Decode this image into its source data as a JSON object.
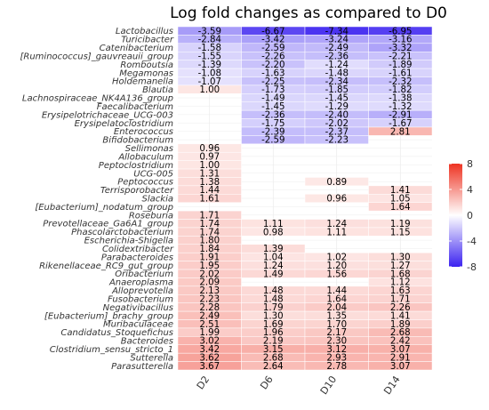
{
  "chart_data": {
    "type": "heatmap",
    "title": "Log fold changes as compared to D0",
    "columns": [
      "D2",
      "D6",
      "D10",
      "D14"
    ],
    "color_scale": {
      "min": -8,
      "mid": 0,
      "max": 8,
      "low_color": "#3b22f0",
      "mid_color": "#ffffff",
      "high_color": "#ee3322",
      "ticks": [
        "8",
        "4",
        "0",
        "-4",
        "-8"
      ]
    },
    "rows": [
      {
        "name": "Lactobacillus",
        "values": [
          -3.59,
          -6.67,
          -7.34,
          -6.95
        ]
      },
      {
        "name": "Turicibacter",
        "values": [
          -2.84,
          -3.42,
          -3.24,
          -3.16
        ]
      },
      {
        "name": "Catenibacterium",
        "values": [
          -1.58,
          -2.59,
          -2.49,
          -3.32
        ]
      },
      {
        "name": "[Ruminococcus]_gauvreauii_group",
        "values": [
          -1.55,
          -2.26,
          -2.36,
          -2.21
        ]
      },
      {
        "name": "Romboutsia",
        "values": [
          -1.39,
          -2.2,
          -1.24,
          -1.89
        ]
      },
      {
        "name": "Megamonas",
        "values": [
          -1.08,
          -1.63,
          -1.48,
          -1.61
        ]
      },
      {
        "name": "Holdemanella",
        "values": [
          -1.07,
          -2.25,
          -2.34,
          -2.32
        ]
      },
      {
        "name": "Blautia",
        "values": [
          1.0,
          -1.73,
          -1.85,
          -1.82
        ]
      },
      {
        "name": "Lachnospiraceae_NK4A136_group",
        "values": [
          null,
          -1.49,
          -1.45,
          -1.38
        ]
      },
      {
        "name": "Faecalibacterium",
        "values": [
          null,
          -1.45,
          -1.29,
          -1.32
        ]
      },
      {
        "name": "Erysipelotrichaceae_UCG-003",
        "values": [
          null,
          -2.36,
          -2.4,
          -2.91
        ]
      },
      {
        "name": "Erysipelatoclostridium",
        "values": [
          null,
          -1.75,
          -2.02,
          -1.67
        ]
      },
      {
        "name": "Enterococcus",
        "values": [
          null,
          -2.39,
          -2.37,
          2.81
        ]
      },
      {
        "name": "Bifidobacterium",
        "values": [
          null,
          -2.59,
          -2.23,
          null
        ]
      },
      {
        "name": "Sellimonas",
        "values": [
          0.96,
          null,
          null,
          null
        ]
      },
      {
        "name": "Allobaculum",
        "values": [
          0.97,
          null,
          null,
          null
        ]
      },
      {
        "name": "Peptoclostridium",
        "values": [
          1.0,
          null,
          null,
          null
        ]
      },
      {
        "name": "UCG-005",
        "values": [
          1.31,
          null,
          null,
          null
        ]
      },
      {
        "name": "Peptococcus",
        "values": [
          1.38,
          null,
          0.89,
          null
        ]
      },
      {
        "name": "Terrisporobacter",
        "values": [
          1.44,
          null,
          null,
          1.41
        ]
      },
      {
        "name": "Slackia",
        "values": [
          1.61,
          null,
          0.96,
          1.05
        ]
      },
      {
        "name": "[Eubacterium]_nodatum_group",
        "values": [
          null,
          null,
          null,
          1.64
        ]
      },
      {
        "name": "Roseburia",
        "values": [
          1.71,
          null,
          null,
          null
        ]
      },
      {
        "name": "Prevotellaceae_Ga6A1_group",
        "values": [
          1.74,
          1.11,
          1.24,
          1.19
        ]
      },
      {
        "name": "Phascolarctobacterium",
        "values": [
          1.74,
          0.98,
          1.11,
          1.15
        ]
      },
      {
        "name": "Escherichia-Shigella",
        "values": [
          1.8,
          null,
          null,
          null
        ]
      },
      {
        "name": "Colidextribacter",
        "values": [
          1.84,
          1.39,
          null,
          null
        ]
      },
      {
        "name": "Parabacteroides",
        "values": [
          1.91,
          1.04,
          1.02,
          1.3
        ]
      },
      {
        "name": "Rikenellaceae_RC9_gut_group",
        "values": [
          1.95,
          1.24,
          1.2,
          1.27
        ]
      },
      {
        "name": "Oribacterium",
        "values": [
          2.02,
          1.49,
          1.56,
          1.68
        ]
      },
      {
        "name": "Anaeroplasma",
        "values": [
          2.09,
          null,
          null,
          1.12
        ]
      },
      {
        "name": "Alloprevotella",
        "values": [
          2.13,
          1.48,
          1.44,
          1.63
        ]
      },
      {
        "name": "Fusobacterium",
        "values": [
          2.23,
          1.48,
          1.64,
          1.71
        ]
      },
      {
        "name": "Negativibacillus",
        "values": [
          2.28,
          1.79,
          2.04,
          2.26
        ]
      },
      {
        "name": "[Eubacterium]_brachy_group",
        "values": [
          2.49,
          1.3,
          1.35,
          1.41
        ]
      },
      {
        "name": "Muribaculaceae",
        "values": [
          2.51,
          1.69,
          1.7,
          1.89
        ]
      },
      {
        "name": "Candidatus_Stoquefichus",
        "values": [
          1.99,
          1.96,
          2.17,
          2.68
        ]
      },
      {
        "name": "Bacteroides",
        "values": [
          3.02,
          2.19,
          2.3,
          2.42
        ]
      },
      {
        "name": "Clostridium_sensu_stricto_1",
        "values": [
          3.42,
          3.15,
          3.12,
          3.07
        ]
      },
      {
        "name": "Sutterella",
        "values": [
          3.62,
          2.68,
          2.93,
          2.91
        ]
      },
      {
        "name": "Parasutterella",
        "values": [
          3.67,
          2.64,
          2.78,
          3.07
        ]
      }
    ]
  }
}
